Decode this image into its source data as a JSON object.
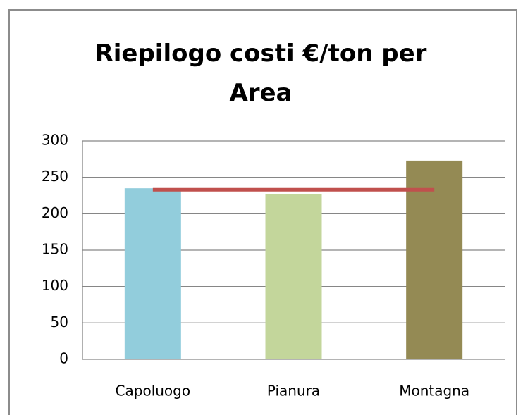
{
  "chart_data": {
    "type": "bar",
    "title": "Riepilogo costi €/ton per Area",
    "categories": [
      "Capoluogo",
      "Pianura",
      "Montagna"
    ],
    "series": [
      {
        "type": "bar",
        "values": [
          235,
          227,
          273
        ],
        "colors": [
          "#92cddc",
          "#c3d69b",
          "#948a54"
        ]
      },
      {
        "type": "line",
        "values": [
          233,
          233,
          233
        ],
        "color": "#c0504d"
      }
    ],
    "ylim": [
      0,
      300
    ],
    "yticks": [
      0,
      50,
      100,
      150,
      200,
      250,
      300
    ],
    "grid": true
  }
}
